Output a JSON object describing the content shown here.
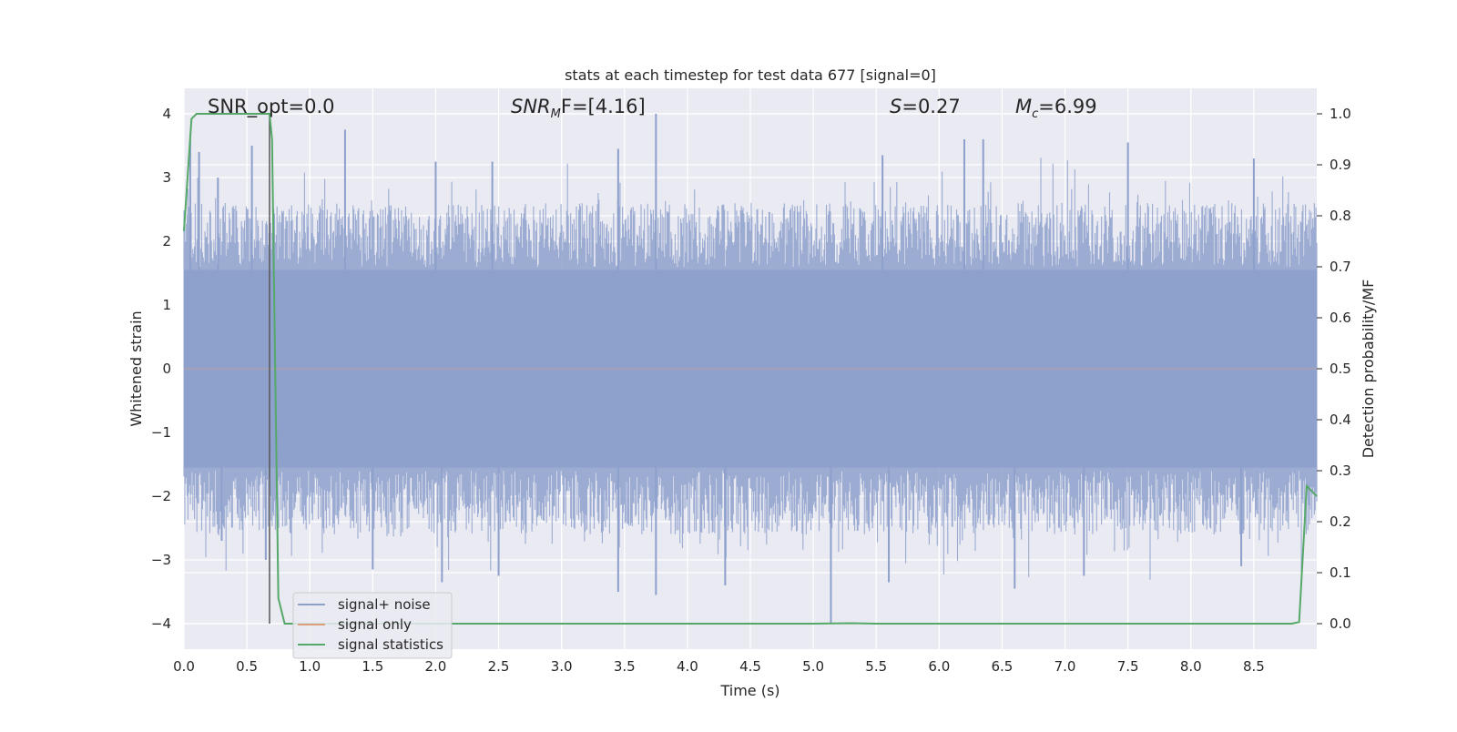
{
  "chart_data": {
    "type": "line",
    "title": "stats at each timestep for test data 677 [signal=0]",
    "xlabel": "Time (s)",
    "ylabel_left": "Whitened strain",
    "ylabel_right": "Detection probability/MF",
    "xlim": [
      0.0,
      9.0
    ],
    "ylim_left": [
      -4.4,
      4.4
    ],
    "ylim_right": [
      -0.05,
      1.05
    ],
    "x_ticks": [
      0.0,
      0.5,
      1.0,
      1.5,
      2.0,
      2.5,
      3.0,
      3.5,
      4.0,
      4.5,
      5.0,
      5.5,
      6.0,
      6.5,
      7.0,
      7.5,
      8.0,
      8.5
    ],
    "x_tick_labels": [
      "0.0",
      "0.5",
      "1.0",
      "1.5",
      "2.0",
      "2.5",
      "3.0",
      "3.5",
      "4.0",
      "4.5",
      "5.0",
      "5.5",
      "6.0",
      "6.5",
      "7.0",
      "7.5",
      "8.0",
      "8.5"
    ],
    "y_left_ticks": [
      -4,
      -3,
      -2,
      -1,
      0,
      1,
      2,
      3,
      4
    ],
    "y_left_tick_labels": [
      "−4",
      "−3",
      "−2",
      "−1",
      "0",
      "1",
      "2",
      "3",
      "4"
    ],
    "y_right_ticks": [
      0.0,
      0.1,
      0.2,
      0.3,
      0.4,
      0.5,
      0.6,
      0.7,
      0.8,
      0.9,
      1.0
    ],
    "y_right_tick_labels": [
      "0.0",
      "0.1",
      "0.2",
      "0.3",
      "0.4",
      "0.5",
      "0.6",
      "0.7",
      "0.8",
      "0.9",
      "1.0"
    ],
    "grid": true,
    "legend_placement": "lower-left",
    "annotations": {
      "snr_opt": "SNR_opt=0.0",
      "snr_mf_main": "SNR",
      "snr_mf_sub": "M",
      "snr_mf_rest": "F=[4.16]",
      "s_main": "S",
      "s_rest": "=0.27",
      "mc_main": "M",
      "mc_sub": "c",
      "mc_rest": "=6.99"
    },
    "series": [
      {
        "name": "signal+ noise",
        "color": "#8da0cb",
        "description_values": {
          "x_range": [
            0.0,
            9.0
          ],
          "band_typical": [
            -1.6,
            1.6
          ],
          "peaks": [
            {
              "x": 0.05,
              "y": 3.6
            },
            {
              "x": 0.12,
              "y": 3.4
            },
            {
              "x": 0.27,
              "y": 3.0
            },
            {
              "x": 0.54,
              "y": 3.5
            },
            {
              "x": 0.71,
              "y": 2.5
            },
            {
              "x": 1.28,
              "y": 3.75
            },
            {
              "x": 2.0,
              "y": 3.25
            },
            {
              "x": 2.45,
              "y": 3.25
            },
            {
              "x": 3.45,
              "y": 3.45
            },
            {
              "x": 3.75,
              "y": 4.0
            },
            {
              "x": 5.55,
              "y": 3.35
            },
            {
              "x": 6.2,
              "y": 3.6
            },
            {
              "x": 6.35,
              "y": 3.6
            },
            {
              "x": 7.5,
              "y": 3.55
            },
            {
              "x": 8.5,
              "y": 3.3
            }
          ],
          "troughs": [
            {
              "x": 0.3,
              "y": -2.7
            },
            {
              "x": 0.65,
              "y": -3.0
            },
            {
              "x": 1.5,
              "y": -3.15
            },
            {
              "x": 2.05,
              "y": -3.35
            },
            {
              "x": 2.5,
              "y": -3.25
            },
            {
              "x": 3.45,
              "y": -3.5
            },
            {
              "x": 3.75,
              "y": -3.55
            },
            {
              "x": 4.3,
              "y": -3.4
            },
            {
              "x": 5.14,
              "y": -4.0
            },
            {
              "x": 5.6,
              "y": -3.35
            },
            {
              "x": 6.6,
              "y": -3.45
            },
            {
              "x": 7.15,
              "y": -3.25
            },
            {
              "x": 8.4,
              "y": -3.1
            }
          ]
        }
      },
      {
        "name": "signal only",
        "color": "#dd9f7a",
        "x": [
          0.0,
          9.0
        ],
        "y": [
          0.0,
          0.0
        ]
      },
      {
        "name": "signal statistics",
        "color": "#55a868",
        "axis": "right",
        "x": [
          0.0,
          0.06,
          0.1,
          0.2,
          0.4,
          0.6,
          0.68,
          0.7,
          0.75,
          0.8,
          0.85,
          1.0,
          2.0,
          3.0,
          4.0,
          5.0,
          5.3,
          5.5,
          6.0,
          7.0,
          8.0,
          8.8,
          8.86,
          8.92,
          9.0
        ],
        "y": [
          0.77,
          0.99,
          1.0,
          1.0,
          1.0,
          1.0,
          1.0,
          0.95,
          0.05,
          0.0,
          0.0,
          0.0,
          0.0,
          0.0,
          0.0,
          0.0,
          0.001,
          0.0,
          0.0,
          0.0,
          0.0,
          0.0,
          0.003,
          0.27,
          0.25
        ]
      }
    ],
    "marker_line": {
      "x": 0.68,
      "y_bottom": -4.0,
      "y_top": 4.0,
      "color": "#555555"
    }
  }
}
